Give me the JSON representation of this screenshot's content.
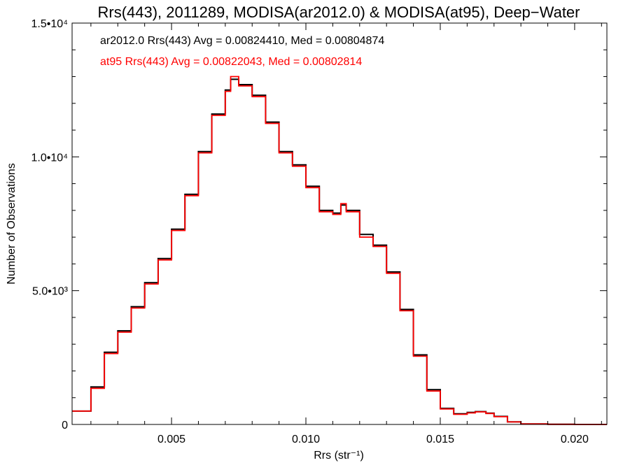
{
  "chart_data": {
    "type": "line",
    "title": "Rrs(443), 2011289, MODISA(ar2012.0) & MODISA(at95), Deep−Water",
    "xlabel": "Rrs (str⁻¹)",
    "ylabel": "Number of Observations",
    "xlim": [
      0.0013,
      0.0212
    ],
    "ylim": [
      0,
      15000
    ],
    "x_ticks": [
      {
        "value": 0.005,
        "label": "0.005"
      },
      {
        "value": 0.01,
        "label": "0.010"
      },
      {
        "value": 0.015,
        "label": "0.015"
      },
      {
        "value": 0.02,
        "label": "0.020"
      }
    ],
    "y_ticks": [
      {
        "value": 0,
        "label": "0"
      },
      {
        "value": 5000,
        "label": "5.0•10³"
      },
      {
        "value": 10000,
        "label": "1.0•10⁴"
      },
      {
        "value": 15000,
        "label": "1.5•10⁴"
      }
    ],
    "annotations": [
      {
        "text": "ar2012.0 Rrs(443) Avg = 0.00824410, Med = 0.00804874",
        "color": "#000000"
      },
      {
        "text": "at95 Rrs(443) Avg = 0.00822043, Med = 0.00802814",
        "color": "#ff0000"
      }
    ],
    "grid": false,
    "step": true,
    "series": [
      {
        "color": "#000000",
        "x": [
          0.0013,
          0.002,
          0.0025,
          0.003,
          0.0035,
          0.004,
          0.0045,
          0.005,
          0.0055,
          0.006,
          0.0065,
          0.007,
          0.0072,
          0.0075,
          0.008,
          0.0085,
          0.009,
          0.0095,
          0.01,
          0.0105,
          0.011,
          0.0113,
          0.0115,
          0.012,
          0.0125,
          0.013,
          0.0135,
          0.014,
          0.0145,
          0.015,
          0.0155,
          0.016,
          0.0163,
          0.0167,
          0.017,
          0.0175,
          0.018,
          0.019,
          0.02,
          0.0212
        ],
        "y": [
          500,
          1400,
          2700,
          3500,
          4400,
          5300,
          6200,
          7300,
          8600,
          10200,
          11600,
          12500,
          12900,
          12700,
          12300,
          11300,
          10200,
          9700,
          8900,
          8000,
          7900,
          8200,
          8000,
          7100,
          6700,
          5700,
          4300,
          2600,
          1300,
          600,
          400,
          450,
          480,
          420,
          300,
          100,
          20,
          5,
          0,
          0
        ]
      },
      {
        "color": "#ff0000",
        "x": [
          0.0013,
          0.002,
          0.0025,
          0.003,
          0.0035,
          0.004,
          0.0045,
          0.005,
          0.0055,
          0.006,
          0.0065,
          0.007,
          0.0072,
          0.0075,
          0.008,
          0.0085,
          0.009,
          0.0095,
          0.01,
          0.0105,
          0.011,
          0.0113,
          0.0115,
          0.012,
          0.0125,
          0.013,
          0.0135,
          0.014,
          0.0145,
          0.015,
          0.0155,
          0.016,
          0.0163,
          0.0167,
          0.017,
          0.0175,
          0.018,
          0.019,
          0.02,
          0.0212
        ],
        "y": [
          500,
          1350,
          2650,
          3450,
          4350,
          5250,
          6150,
          7250,
          8550,
          10150,
          11550,
          12450,
          13000,
          12650,
          12250,
          11250,
          10150,
          9650,
          8850,
          7950,
          7850,
          8250,
          7950,
          7000,
          6650,
          5650,
          4250,
          2550,
          1250,
          580,
          380,
          430,
          470,
          410,
          290,
          95,
          18,
          4,
          0,
          0
        ]
      }
    ]
  }
}
